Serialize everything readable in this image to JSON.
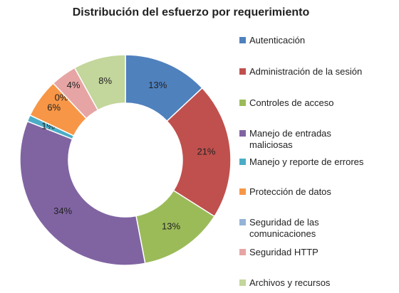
{
  "chart_data": {
    "type": "donut",
    "title": "Distribución del esfuerzo por requerimiento",
    "categories": [
      "Autenticación",
      "Administración de la sesión",
      "Controles de acceso",
      "Manejo de entradas maliciosas",
      "Manejo y reporte de errores",
      "Protección de datos",
      "Seguridad de las comunicaciones",
      "Seguridad HTTP",
      "Archivos y recursos"
    ],
    "values": [
      13,
      21,
      13,
      34,
      1,
      6,
      0,
      4,
      8
    ],
    "value_labels": [
      "13%",
      "21%",
      "13%",
      "34%",
      "1%",
      "6%",
      "0%",
      "4%",
      "8%"
    ],
    "colors": [
      "#4f81bd",
      "#c0504d",
      "#9bbb59",
      "#8064a2",
      "#4bacc6",
      "#f79646",
      "#95b3d7",
      "#e6a5a4",
      "#c3d69b"
    ],
    "legend": "right"
  }
}
